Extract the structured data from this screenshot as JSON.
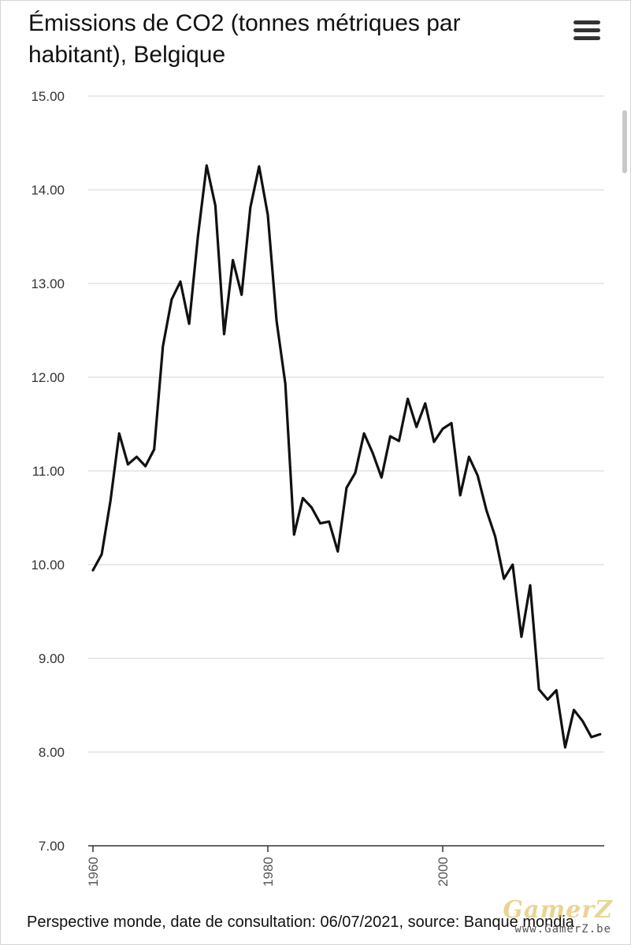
{
  "chart_data": {
    "type": "line",
    "title": "Émissions de CO2 (tonnes métriques par habitant), Belgique",
    "xlabel": "",
    "ylabel": "",
    "xlim": [
      1960,
      2018
    ],
    "ylim": [
      7.0,
      15.0
    ],
    "y_ticks": [
      "7.00",
      "8.00",
      "9.00",
      "10.00",
      "11.00",
      "12.00",
      "13.00",
      "14.00",
      "15.00"
    ],
    "x_ticks": [
      "1960",
      "1980",
      "2000"
    ],
    "grid": "horizontal",
    "colors": {
      "line": "#111111",
      "grid": "#dcdcdc",
      "axis": "#333333"
    },
    "series": [
      {
        "x": [
          1960,
          1961,
          1962,
          1963,
          1964,
          1965,
          1966,
          1967,
          1968,
          1969,
          1970,
          1971,
          1972,
          1973,
          1974,
          1975,
          1976,
          1977,
          1978,
          1979,
          1980,
          1981,
          1982,
          1983,
          1984,
          1985,
          1986,
          1987,
          1988,
          1989,
          1990,
          1991,
          1992,
          1993,
          1994,
          1995,
          1996,
          1997,
          1998,
          1999,
          2000,
          2001,
          2002,
          2003,
          2004,
          2005,
          2006,
          2007,
          2008,
          2009,
          2010,
          2011,
          2012,
          2013,
          2014,
          2015,
          2016,
          2017,
          2018
        ],
        "values": [
          9.94,
          10.11,
          10.68,
          11.4,
          11.07,
          11.15,
          11.05,
          11.23,
          12.33,
          12.83,
          13.02,
          12.57,
          13.5,
          14.26,
          13.83,
          12.46,
          13.25,
          12.88,
          13.81,
          14.25,
          13.73,
          12.6,
          11.93,
          10.32,
          10.71,
          10.61,
          10.44,
          10.46,
          10.14,
          10.82,
          10.98,
          11.4,
          11.19,
          10.93,
          11.37,
          11.32,
          11.77,
          11.47,
          11.72,
          11.31,
          11.45,
          11.51,
          10.74,
          11.15,
          10.95,
          10.58,
          10.3,
          9.85,
          10.0,
          9.23,
          9.78,
          8.67,
          8.56,
          8.66,
          8.05,
          8.45,
          8.33,
          8.16,
          8.19
        ]
      }
    ]
  },
  "footer": {
    "source_text": "Perspective monde, date de consultation: 06/07/2021, source: Banque mondia"
  },
  "menu": {
    "icon": "hamburger-menu-icon"
  },
  "watermark": {
    "main": "GamerZ",
    "sub": "www.GamerZ.be"
  }
}
